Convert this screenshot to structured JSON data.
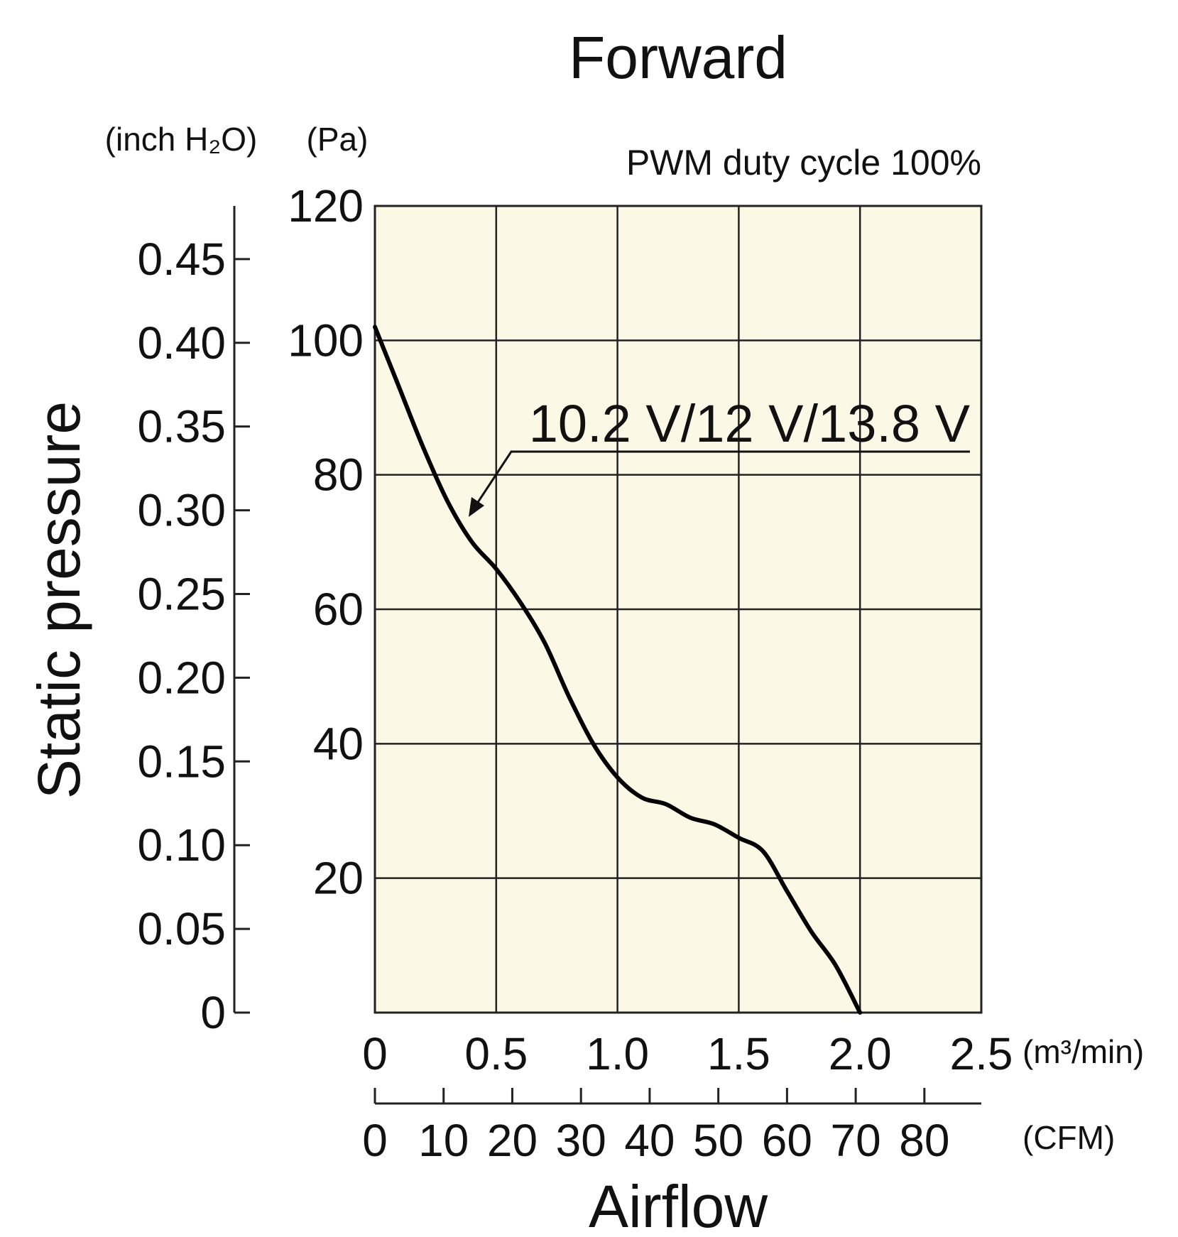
{
  "chart_data": {
    "type": "line",
    "title": "Forward",
    "subtitle": "PWM duty cycle 100%",
    "xlabel": "Airflow",
    "ylabel": "Static pressure",
    "x_unit": "(m³/min)",
    "x2_unit": "(CFM)",
    "y_unit": "(Pa)",
    "y2_unit": "(inch H₂O)",
    "xlim": [
      0,
      2.5
    ],
    "ylim": [
      0,
      120
    ],
    "x_ticks": [
      "0",
      "0.5",
      "1.0",
      "1.5",
      "2.0",
      "2.5"
    ],
    "y_ticks": [
      "20",
      "40",
      "60",
      "80",
      "100",
      "120"
    ],
    "x2_ticks": [
      "0",
      "10",
      "20",
      "30",
      "40",
      "50",
      "60",
      "70",
      "80"
    ],
    "y2_ticks": [
      "0",
      "0.05",
      "0.10",
      "0.15",
      "0.20",
      "0.25",
      "0.30",
      "0.35",
      "0.40",
      "0.45"
    ],
    "grid": true,
    "plot_background": "#fbf8e6",
    "line_color": "#000000",
    "series": [
      {
        "name": "10.2 V/12 V/13.8 V",
        "x": [
          0.0,
          0.1,
          0.2,
          0.3,
          0.4,
          0.5,
          0.6,
          0.7,
          0.8,
          0.9,
          1.0,
          1.1,
          1.2,
          1.3,
          1.4,
          1.5,
          1.6,
          1.7,
          1.8,
          1.9,
          2.0
        ],
        "y": [
          102,
          93,
          84,
          76,
          70,
          66,
          61,
          55,
          47,
          40,
          35,
          32,
          31,
          29,
          28,
          26,
          24,
          18,
          12,
          7,
          0
        ]
      }
    ]
  }
}
